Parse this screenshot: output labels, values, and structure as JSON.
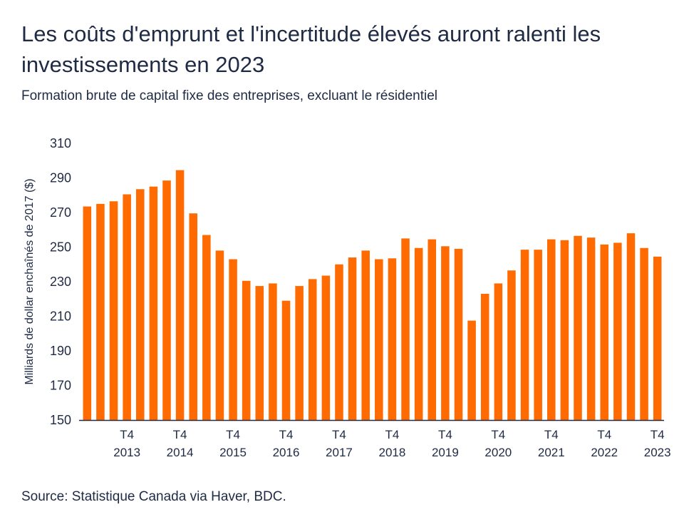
{
  "title": "Les coûts d'emprunt et l'incertitude élevés auront ralenti les investissements en 2023",
  "subtitle": "Formation brute de capital fixe des entreprises, excluant le résidentiel",
  "source": "Source: Statistique Canada via Haver, BDC.",
  "chart_data": {
    "type": "bar",
    "title": "Les coûts d'emprunt et l'incertitude élevés auront ralenti les investissements en 2023",
    "subtitle": "Formation brute de capital fixe des entreprises, excluant le résidentiel",
    "xlabel": "",
    "ylabel": "Milliards de dollar enchaînés de 2017 ($)",
    "ylim": [
      150,
      310
    ],
    "yticks": [
      150,
      170,
      190,
      210,
      230,
      250,
      270,
      290,
      310
    ],
    "grid": false,
    "bar_color": "#ff6b00",
    "tick_labels": [
      {
        "quarter": "T4",
        "year": "2013"
      },
      {
        "quarter": "T4",
        "year": "2014"
      },
      {
        "quarter": "T4",
        "year": "2015"
      },
      {
        "quarter": "T4",
        "year": "2016"
      },
      {
        "quarter": "T4",
        "year": "2017"
      },
      {
        "quarter": "T4",
        "year": "2018"
      },
      {
        "quarter": "T4",
        "year": "2019"
      },
      {
        "quarter": "T4",
        "year": "2020"
      },
      {
        "quarter": "T4",
        "year": "2021"
      },
      {
        "quarter": "T4",
        "year": "2022"
      },
      {
        "quarter": "T4",
        "year": "2023"
      }
    ],
    "categories": [
      "T1 2013",
      "T2 2013",
      "T3 2013",
      "T4 2013",
      "T1 2014",
      "T2 2014",
      "T3 2014",
      "T4 2014",
      "T1 2015",
      "T2 2015",
      "T3 2015",
      "T4 2015",
      "T1 2016",
      "T2 2016",
      "T3 2016",
      "T4 2016",
      "T1 2017",
      "T2 2017",
      "T3 2017",
      "T4 2017",
      "T1 2018",
      "T2 2018",
      "T3 2018",
      "T4 2018",
      "T1 2019",
      "T2 2019",
      "T3 2019",
      "T4 2019",
      "T1 2020",
      "T2 2020",
      "T3 2020",
      "T4 2020",
      "T1 2021",
      "T2 2021",
      "T3 2021",
      "T4 2021",
      "T1 2022",
      "T2 2022",
      "T3 2022",
      "T4 2022",
      "T1 2023",
      "T2 2023",
      "T3 2023",
      "T4 2023"
    ],
    "values": [
      273.5,
      275,
      276.5,
      280.5,
      283.5,
      285,
      288.5,
      294.5,
      269.5,
      257,
      248,
      243,
      230.5,
      227.5,
      229,
      219,
      227.5,
      231.5,
      233.5,
      240,
      244,
      248,
      243,
      243.5,
      255,
      249.5,
      254.5,
      250.5,
      249,
      207.5,
      223,
      229,
      236.5,
      248.5,
      248.5,
      254.5,
      254,
      256.5,
      255.5,
      251.5,
      252.5,
      258,
      249.5,
      244.5
    ]
  }
}
